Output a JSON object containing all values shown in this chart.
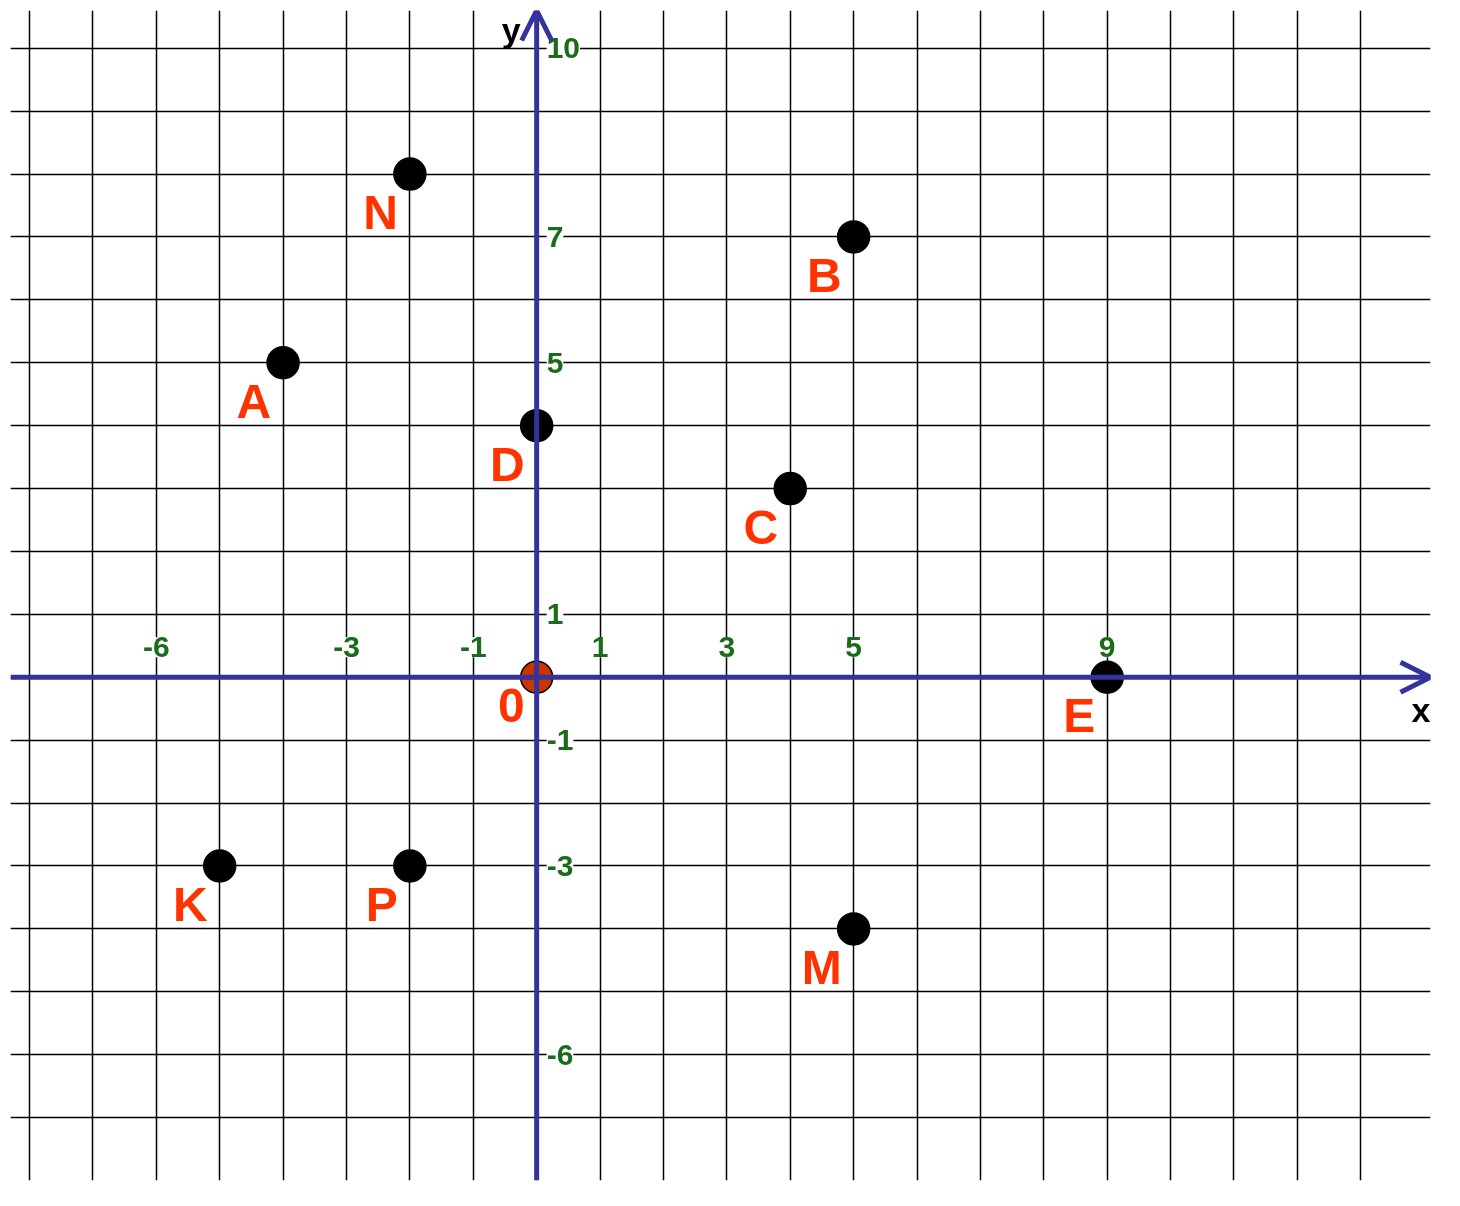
{
  "chart_data": {
    "type": "scatter",
    "xlabel": "x",
    "ylabel": "y",
    "marker": "circle",
    "grid": true,
    "xlim": [
      -8.3,
      14.1
    ],
    "ylim": [
      -8,
      10.6
    ],
    "xticks": [
      {
        "value": -8,
        "label": null
      },
      {
        "value": -7,
        "label": null
      },
      -6,
      {
        "value": -5,
        "label": null
      },
      {
        "value": -4,
        "label": null
      },
      -3,
      {
        "value": -2,
        "label": null
      },
      -1,
      {
        "value": 0,
        "label": null
      },
      1,
      {
        "value": 2,
        "label": null
      },
      3,
      {
        "value": 4,
        "label": null
      },
      5,
      {
        "value": 6,
        "label": null
      },
      {
        "value": 7,
        "label": null
      },
      {
        "value": 8,
        "label": null
      },
      9,
      {
        "value": 10,
        "label": null
      },
      {
        "value": 11,
        "label": null
      },
      {
        "value": 12,
        "label": null
      },
      {
        "value": 13,
        "label": null
      }
    ],
    "yticks": [
      {
        "value": -7,
        "label": null
      },
      -6,
      {
        "value": -5,
        "label": null
      },
      {
        "value": -4,
        "label": null
      },
      -3,
      {
        "value": -2,
        "label": null
      },
      -1,
      {
        "value": 0,
        "label": null
      },
      1,
      {
        "value": 2,
        "label": null
      },
      {
        "value": 3,
        "label": null
      },
      {
        "value": 4,
        "label": null
      },
      5,
      {
        "value": 6,
        "label": null
      },
      7,
      {
        "value": 8,
        "label": null
      },
      {
        "value": 9,
        "label": null
      },
      10
    ],
    "series": [
      {
        "color": "#000000",
        "x": [
          -2,
          5,
          -4,
          0,
          4,
          9,
          -5,
          -2,
          5
        ],
        "values": [
          8,
          7,
          5,
          4,
          3,
          0,
          -3,
          -3,
          -4
        ]
      },
      {
        "color": "#cc3300",
        "x": [
          0
        ],
        "values": [
          0
        ]
      }
    ],
    "annotations": [
      {
        "text": "N",
        "x": -2,
        "y": 8
      },
      {
        "text": "B",
        "x": 5,
        "y": 7
      },
      {
        "text": "A",
        "x": -4,
        "y": 5
      },
      {
        "text": "D",
        "x": 0,
        "y": 4
      },
      {
        "text": "C",
        "x": 4,
        "y": 3
      },
      {
        "text": "E",
        "x": 9,
        "y": 0
      },
      {
        "text": "K",
        "x": -5,
        "y": -3
      },
      {
        "text": "P",
        "x": -2,
        "y": -3
      },
      {
        "text": "M",
        "x": 5,
        "y": -4
      },
      {
        "text": "0",
        "x": 0,
        "y": 0
      }
    ]
  }
}
